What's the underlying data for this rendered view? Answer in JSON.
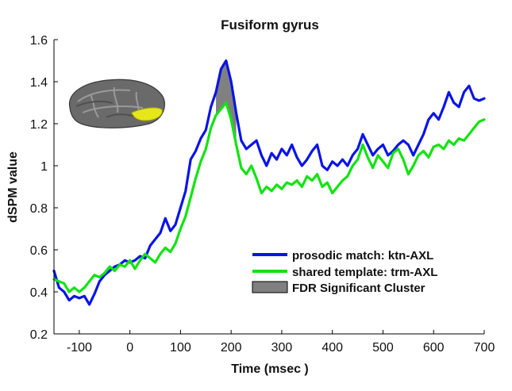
{
  "chart_data": {
    "type": "line",
    "title": "Fusiform gyrus",
    "xlabel": "Time (msec )",
    "ylabel": "dSPM value",
    "xlim": [
      -150,
      700
    ],
    "ylim": [
      0.2,
      1.6
    ],
    "xticks": [
      -100,
      0,
      100,
      200,
      300,
      400,
      500,
      600,
      700
    ],
    "yticks": [
      0.2,
      0.4,
      0.6,
      0.8,
      1,
      1.2,
      1.4,
      1.6
    ],
    "xtick_labels": [
      "-100",
      "0",
      "100",
      "200",
      "300",
      "400",
      "500",
      "600",
      "700"
    ],
    "ytick_labels": [
      "0.2",
      "0.4",
      "0.6",
      "0.8",
      "1",
      "1.2",
      "1.4",
      "1.6"
    ],
    "grid": false,
    "legend_position": "bottom-right",
    "series": [
      {
        "name": "prosodic match: ktn-AXL",
        "color": "#0a14e6",
        "x": [
          -150,
          -140,
          -130,
          -120,
          -110,
          -100,
          -90,
          -80,
          -70,
          -60,
          -50,
          -40,
          -30,
          -20,
          -10,
          0,
          10,
          20,
          30,
          40,
          50,
          60,
          70,
          80,
          90,
          100,
          110,
          120,
          130,
          140,
          150,
          160,
          170,
          180,
          190,
          200,
          210,
          220,
          230,
          240,
          250,
          260,
          270,
          280,
          290,
          300,
          310,
          320,
          330,
          340,
          350,
          360,
          370,
          380,
          390,
          400,
          410,
          420,
          430,
          440,
          450,
          460,
          470,
          480,
          490,
          500,
          510,
          520,
          530,
          540,
          550,
          560,
          570,
          580,
          590,
          600,
          610,
          620,
          630,
          640,
          650,
          660,
          670,
          680,
          690,
          700
        ],
        "values": [
          0.5,
          0.42,
          0.4,
          0.36,
          0.38,
          0.37,
          0.38,
          0.34,
          0.39,
          0.45,
          0.48,
          0.5,
          0.52,
          0.53,
          0.55,
          0.54,
          0.55,
          0.57,
          0.56,
          0.62,
          0.65,
          0.68,
          0.75,
          0.69,
          0.72,
          0.8,
          0.88,
          1.03,
          1.07,
          1.13,
          1.17,
          1.28,
          1.35,
          1.46,
          1.5,
          1.4,
          1.25,
          1.12,
          1.08,
          1.1,
          1.12,
          1.05,
          1.0,
          1.06,
          1.03,
          1.08,
          1.05,
          1.1,
          1.04,
          1.0,
          1.03,
          1.07,
          1.1,
          1.0,
          0.98,
          1.02,
          1.0,
          1.03,
          1.0,
          1.05,
          1.08,
          1.15,
          1.1,
          1.05,
          1.08,
          1.1,
          1.05,
          1.07,
          1.1,
          1.12,
          1.1,
          1.05,
          1.1,
          1.15,
          1.22,
          1.25,
          1.22,
          1.28,
          1.35,
          1.3,
          1.28,
          1.35,
          1.38,
          1.32,
          1.31,
          1.32
        ]
      },
      {
        "name": "shared template: trm-AXL",
        "color": "#11e311",
        "x": [
          -150,
          -140,
          -130,
          -120,
          -110,
          -100,
          -90,
          -80,
          -70,
          -60,
          -50,
          -40,
          -30,
          -20,
          -10,
          0,
          10,
          20,
          30,
          40,
          50,
          60,
          70,
          80,
          90,
          100,
          110,
          120,
          130,
          140,
          150,
          160,
          170,
          180,
          190,
          200,
          210,
          220,
          230,
          240,
          250,
          260,
          270,
          280,
          290,
          300,
          310,
          320,
          330,
          340,
          350,
          360,
          370,
          380,
          390,
          400,
          410,
          420,
          430,
          440,
          450,
          460,
          470,
          480,
          490,
          500,
          510,
          520,
          530,
          540,
          550,
          560,
          570,
          580,
          590,
          600,
          610,
          620,
          630,
          640,
          650,
          660,
          670,
          680,
          690,
          700
        ],
        "values": [
          0.46,
          0.45,
          0.44,
          0.4,
          0.42,
          0.4,
          0.42,
          0.45,
          0.48,
          0.47,
          0.49,
          0.52,
          0.5,
          0.53,
          0.52,
          0.55,
          0.51,
          0.55,
          0.58,
          0.56,
          0.54,
          0.58,
          0.61,
          0.59,
          0.63,
          0.7,
          0.76,
          0.85,
          0.94,
          1.02,
          1.08,
          1.18,
          1.24,
          1.27,
          1.3,
          1.22,
          1.1,
          0.99,
          0.96,
          1.0,
          0.94,
          0.87,
          0.9,
          0.88,
          0.91,
          0.89,
          0.92,
          0.91,
          0.93,
          0.9,
          0.95,
          0.93,
          0.96,
          0.9,
          0.92,
          0.87,
          0.9,
          0.93,
          0.95,
          1.0,
          1.03,
          1.1,
          1.04,
          0.99,
          1.05,
          1.02,
          0.99,
          1.06,
          1.08,
          1.03,
          0.96,
          1.0,
          1.05,
          1.07,
          1.04,
          1.09,
          1.1,
          1.08,
          1.12,
          1.1,
          1.13,
          1.12,
          1.15,
          1.18,
          1.21,
          1.22
        ]
      }
    ],
    "significant_cluster": {
      "name": "FDR Significant Cluster",
      "color": "#808080",
      "x_range": [
        170,
        215
      ]
    }
  }
}
